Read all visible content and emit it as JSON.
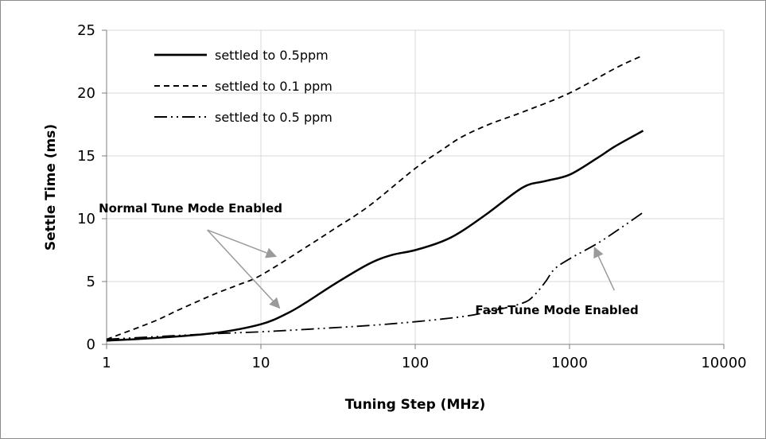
{
  "chart_data": {
    "type": "line",
    "title": "",
    "xlabel": "Tuning Step (MHz)",
    "ylabel": "Settle Time (ms)",
    "xscale": "log",
    "xlim": [
      1,
      10000
    ],
    "ylim": [
      0,
      25
    ],
    "xticks": [
      1,
      10,
      100,
      1000,
      10000
    ],
    "xtick_labels": [
      "1",
      "10",
      "100",
      "1000",
      "10000"
    ],
    "yticks": [
      0,
      5,
      10,
      15,
      20,
      25
    ],
    "ytick_labels": [
      "0",
      "5",
      "10",
      "15",
      "20",
      "25"
    ],
    "grid": true,
    "legend_position": "top-left",
    "series": [
      {
        "name": "settled to 0.5ppm",
        "style": "solid",
        "color": "#000000",
        "x": [
          1,
          2,
          5,
          10,
          15,
          20,
          30,
          50,
          70,
          100,
          150,
          200,
          300,
          500,
          700,
          1000,
          1500,
          2000,
          3000
        ],
        "y": [
          0.3,
          0.5,
          0.9,
          1.6,
          2.5,
          3.4,
          4.8,
          6.4,
          7.1,
          7.5,
          8.2,
          9.0,
          10.5,
          12.5,
          13.0,
          13.5,
          14.8,
          15.8,
          17.0
        ]
      },
      {
        "name": "settled to 0.1 ppm",
        "style": "dashed",
        "color": "#000000",
        "x": [
          1,
          2,
          3,
          5,
          7,
          10,
          20,
          30,
          50,
          100,
          150,
          200,
          300,
          500,
          1000,
          2000,
          3000
        ],
        "y": [
          0.4,
          1.8,
          2.8,
          4.0,
          4.7,
          5.5,
          7.8,
          9.2,
          11.0,
          14.0,
          15.5,
          16.5,
          17.5,
          18.5,
          20.0,
          22.0,
          23.0
        ]
      },
      {
        "name": "settled to 0.5 ppm",
        "style": "dash-dot-dot",
        "color": "#000000",
        "x": [
          1,
          2,
          5,
          10,
          20,
          50,
          100,
          200,
          300,
          500,
          600,
          700,
          800,
          1000,
          1500,
          2000,
          3000
        ],
        "y": [
          0.4,
          0.6,
          0.85,
          1.0,
          1.2,
          1.5,
          1.8,
          2.2,
          2.6,
          3.3,
          4.0,
          5.0,
          6.0,
          6.8,
          8.0,
          9.0,
          10.5
        ]
      }
    ],
    "annotations": [
      {
        "text": "Normal Tune Mode Enabled",
        "anchor": [
          3.5,
          10.5
        ],
        "arrow_from": [
          4.5,
          9.1
        ],
        "arrow_to": [
          [
            12.5,
            7.0
          ],
          [
            13.2,
            2.9
          ]
        ]
      },
      {
        "text": "Fast Tune Mode Enabled",
        "anchor": [
          2800,
          2.4
        ],
        "arrow_from": [
          1950,
          4.3
        ],
        "arrow_to": [
          [
            1450,
            7.7
          ]
        ]
      }
    ]
  }
}
